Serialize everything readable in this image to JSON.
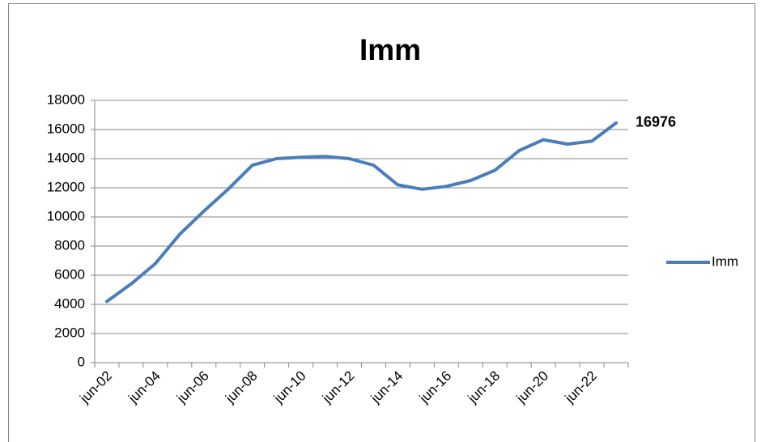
{
  "chart_data": {
    "type": "line",
    "title": "Imm",
    "categories": [
      "jun-02",
      null,
      "jun-04",
      null,
      "jun-06",
      null,
      "jun-08",
      null,
      "jun-10",
      null,
      "jun-12",
      null,
      "jun-14",
      null,
      "jun-16",
      null,
      "jun-18",
      null,
      "jun-20",
      null,
      "jun-22",
      null
    ],
    "series": [
      {
        "name": "Imm",
        "color": "#4a7ebb",
        "values": [
          4200,
          5400,
          6800,
          8800,
          10400,
          11900,
          13550,
          14000,
          14100,
          14150,
          14000,
          13550,
          12200,
          11900,
          12100,
          12500,
          13200,
          14550,
          15300,
          15000,
          15200,
          16450
        ]
      }
    ],
    "annotations": [
      "16976"
    ],
    "ylim": [
      0,
      18000
    ],
    "yticks": [
      0,
      2000,
      4000,
      6000,
      8000,
      10000,
      12000,
      14000,
      16000,
      18000
    ],
    "grid": true,
    "legend": "right"
  }
}
